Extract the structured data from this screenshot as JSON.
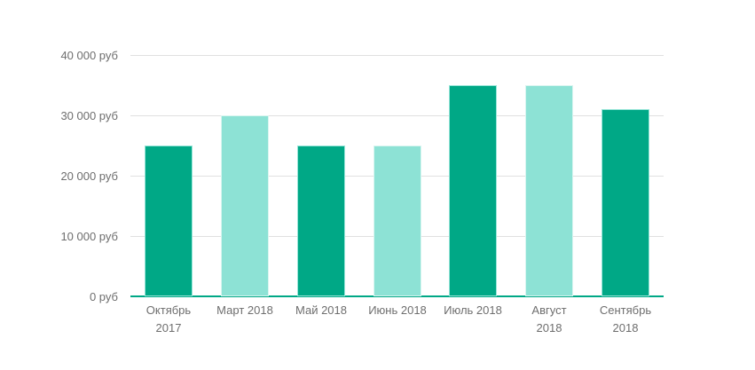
{
  "chart_data": {
    "type": "bar",
    "title": "",
    "categories": [
      "Октябрь 2017",
      "Март 2018",
      "Май 2018",
      "Июнь 2018",
      "Июль 2018",
      "Август 2018",
      "Сентябрь 2018"
    ],
    "category_labels": [
      "Октябрь\n2017",
      "Март 2018",
      "Май 2018",
      "Июнь 2018",
      "Июль 2018",
      "Август\n2018",
      "Сентябрь\n2018"
    ],
    "values": [
      25000,
      30000,
      25000,
      25000,
      35000,
      35000,
      31000
    ],
    "value_unit": "руб",
    "bar_styles": [
      "dark",
      "light",
      "dark",
      "light",
      "dark",
      "light",
      "dark"
    ],
    "palette": {
      "dark": {
        "fill": "#00a886",
        "stroke": "#97e5d8"
      },
      "light": {
        "fill": "#8de2d5",
        "stroke": "#d9f5f0"
      }
    },
    "y_axis": {
      "range": [
        0,
        40000
      ],
      "ticks": [
        0,
        10000,
        20000,
        30000,
        40000
      ],
      "tick_labels": [
        "0 руб",
        "10 000 руб",
        "20 000 руб",
        "30 000 руб",
        "40 000 руб"
      ]
    },
    "x_axis": {
      "baseline_color": "#00a886"
    },
    "grid": {
      "show": true,
      "color": "#e0e0e0"
    },
    "text_color": "#6e6e6e",
    "background": "#ffffff"
  }
}
